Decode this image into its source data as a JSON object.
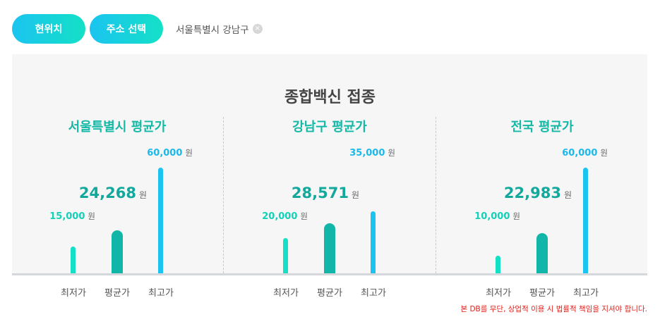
{
  "top": {
    "current_location_button": "현위치",
    "select_address_button": "주소 선택",
    "address_chip": "서울특별시 강남구",
    "chip_remove": "×"
  },
  "panel": {
    "title": "종합백신 접종",
    "currency_unit": "원",
    "bar_labels": [
      "최저가",
      "평균가",
      "최고가"
    ],
    "columns": [
      {
        "title": "서울특별시 평균가",
        "min": "15,000",
        "avg": "24,268",
        "max": "60,000"
      },
      {
        "title": "강남구 평균가",
        "min": "20,000",
        "avg": "28,571",
        "max": "35,000"
      },
      {
        "title": "전국 평균가",
        "min": "10,000",
        "avg": "22,983",
        "max": "60,000"
      }
    ]
  },
  "chart_data": {
    "type": "bar",
    "title": "종합백신 접종",
    "categories": [
      "최저가",
      "평균가",
      "최고가"
    ],
    "ylim": [
      0,
      60000
    ],
    "series": [
      {
        "name": "서울특별시 평균가",
        "values": [
          15000,
          24268,
          60000
        ]
      },
      {
        "name": "강남구 평균가",
        "values": [
          20000,
          28571,
          35000
        ]
      },
      {
        "name": "전국 평균가",
        "values": [
          10000,
          22983,
          60000
        ]
      }
    ]
  },
  "colors": {
    "accent_gradient_start": "#1bc4f0",
    "accent_gradient_end": "#14e0c6",
    "min_bar": "#14e0c6",
    "avg_bar": "#12b6a8",
    "max_bar": "#1bc4f0",
    "notice": "#e0201a"
  },
  "notice": "본 DB를 무단, 상업적 이용 시 법률적 책임을 지셔야 합니다."
}
